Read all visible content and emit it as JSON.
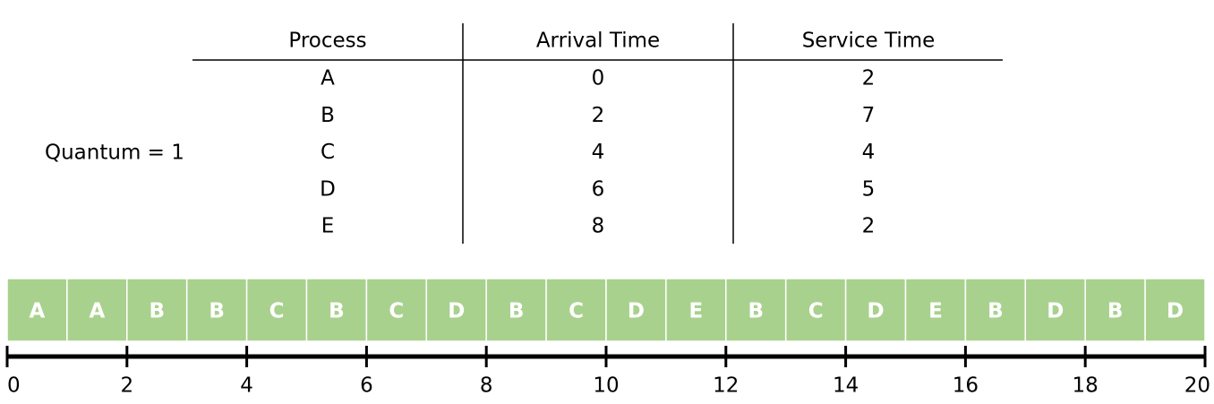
{
  "quantum_label": "Quantum = 1",
  "table": {
    "header": [
      "Process",
      "Arrival Time",
      "Service Time"
    ],
    "rows": [
      [
        "A",
        0,
        2
      ],
      [
        "B",
        2,
        7
      ],
      [
        "C",
        4,
        4
      ],
      [
        "D",
        6,
        5
      ],
      [
        "E",
        8,
        2
      ]
    ]
  },
  "gantt": {
    "slots": [
      "A",
      "A",
      "B",
      "B",
      "C",
      "B",
      "C",
      "D",
      "B",
      "C",
      "D",
      "E",
      "B",
      "C",
      "D",
      "E",
      "B",
      "D",
      "B",
      "D"
    ],
    "ticks": [
      0,
      2,
      4,
      6,
      8,
      10,
      12,
      14,
      16,
      18,
      20
    ]
  }
}
